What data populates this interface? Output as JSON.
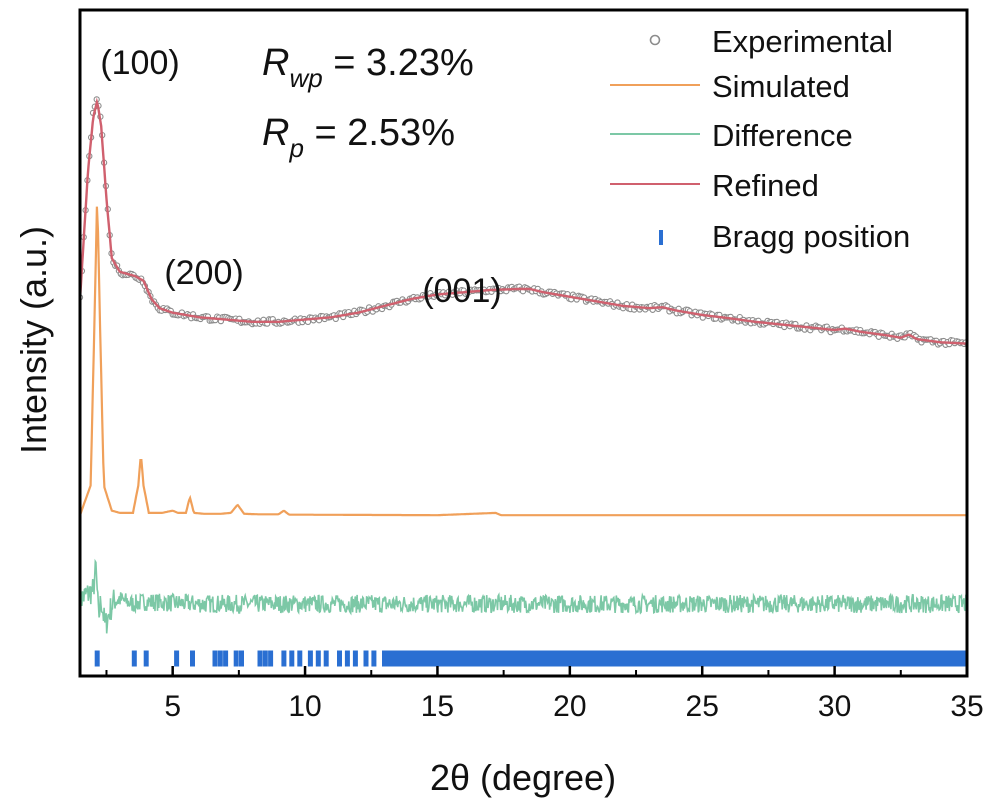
{
  "chart_data": {
    "type": "line",
    "title": "",
    "xlabel": "2θ (degree)",
    "ylabel": "Intensity (a.u.)",
    "xlim": [
      1.5,
      35
    ],
    "ylim": [
      0,
      1
    ],
    "y_ticks_shown": false,
    "grid": false,
    "legend_position": "top-right",
    "x_ticks": [
      5,
      10,
      15,
      20,
      25,
      30,
      35
    ],
    "x_tick_labels": [
      "5",
      "10",
      "15",
      "20",
      "25",
      "30",
      "35"
    ],
    "colors": {
      "experimental": "#8c8c8c",
      "simulated": "#f0a05a",
      "difference": "#7cc8a6",
      "refined": "#d0606e",
      "bragg": "#2a6fd2"
    },
    "series": [
      {
        "name": "Experimental",
        "style": "open-circle markers",
        "x": [
          1.5,
          1.8,
          2.0,
          2.15,
          2.3,
          2.5,
          2.7,
          3.0,
          3.3,
          3.6,
          3.9,
          4.2,
          4.5,
          5,
          6,
          7,
          8,
          9,
          10,
          11,
          12,
          13,
          14,
          15,
          16,
          17,
          18,
          18.5,
          19,
          20,
          21,
          22,
          23,
          23.5,
          24,
          25,
          26,
          27,
          28,
          29,
          30,
          30.4,
          31,
          32,
          32.5,
          32.8,
          33.1,
          34,
          35
        ],
        "y": [
          0.49,
          0.77,
          0.9,
          0.94,
          0.88,
          0.72,
          0.58,
          0.55,
          0.545,
          0.54,
          0.53,
          0.49,
          0.47,
          0.46,
          0.45,
          0.445,
          0.44,
          0.44,
          0.445,
          0.45,
          0.46,
          0.475,
          0.49,
          0.5,
          0.505,
          0.51,
          0.512,
          0.512,
          0.505,
          0.495,
          0.485,
          0.475,
          0.47,
          0.472,
          0.465,
          0.455,
          0.448,
          0.44,
          0.434,
          0.428,
          0.422,
          0.425,
          0.418,
          0.41,
          0.405,
          0.412,
          0.402,
          0.395,
          0.392
        ]
      },
      {
        "name": "Simulated",
        "x": [
          1.5,
          1.9,
          2.05,
          2.15,
          2.25,
          2.4,
          2.7,
          3.0,
          3.5,
          3.7,
          3.8,
          3.9,
          4.1,
          4.6,
          5.0,
          5.2,
          5.5,
          5.65,
          5.8,
          6.2,
          6.8,
          7.2,
          7.45,
          7.7,
          8.2,
          9.0,
          9.2,
          9.4,
          10,
          15,
          17.2,
          17.4,
          20,
          25,
          30,
          35
        ],
        "y": [
          0.015,
          0.08,
          0.45,
          0.72,
          0.45,
          0.08,
          0.025,
          0.02,
          0.02,
          0.08,
          0.15,
          0.08,
          0.02,
          0.02,
          0.025,
          0.02,
          0.02,
          0.055,
          0.02,
          0.018,
          0.018,
          0.02,
          0.038,
          0.018,
          0.017,
          0.017,
          0.025,
          0.016,
          0.016,
          0.015,
          0.02,
          0.015,
          0.015,
          0.015,
          0.015,
          0.015
        ]
      },
      {
        "name": "Difference",
        "noisy": true,
        "x": [
          1.5,
          2.0,
          2.1,
          2.2,
          2.3,
          2.45,
          2.6,
          2.8,
          3.0,
          3.5,
          4,
          5,
          6,
          7,
          8,
          10,
          15,
          20,
          25,
          30,
          35
        ],
        "y": [
          -0.17,
          -0.15,
          -0.1,
          -0.21,
          -0.17,
          -0.23,
          -0.2,
          -0.17,
          -0.17,
          -0.18,
          -0.175,
          -0.178,
          -0.18,
          -0.18,
          -0.18,
          -0.18,
          -0.18,
          -0.18,
          -0.18,
          -0.18,
          -0.18
        ]
      },
      {
        "name": "Refined",
        "x": [
          1.5,
          1.8,
          2.0,
          2.15,
          2.3,
          2.5,
          2.7,
          3.0,
          3.3,
          3.6,
          3.9,
          4.2,
          4.5,
          5,
          6,
          7,
          8,
          9,
          10,
          11,
          12,
          13,
          14,
          15,
          16,
          17,
          18,
          18.5,
          19,
          20,
          21,
          22,
          23,
          23.5,
          24,
          25,
          26,
          27,
          28,
          29,
          30,
          30.4,
          31,
          32,
          32.5,
          32.8,
          33.1,
          34,
          35
        ],
        "y": [
          0.49,
          0.77,
          0.89,
          0.925,
          0.87,
          0.71,
          0.58,
          0.55,
          0.545,
          0.54,
          0.53,
          0.49,
          0.47,
          0.46,
          0.45,
          0.445,
          0.44,
          0.44,
          0.445,
          0.45,
          0.46,
          0.475,
          0.49,
          0.5,
          0.505,
          0.51,
          0.512,
          0.512,
          0.505,
          0.495,
          0.485,
          0.475,
          0.47,
          0.472,
          0.465,
          0.455,
          0.448,
          0.44,
          0.434,
          0.428,
          0.422,
          0.425,
          0.418,
          0.41,
          0.405,
          0.412,
          0.402,
          0.395,
          0.392
        ]
      }
    ],
    "bragg_positions": {
      "name": "Bragg position",
      "y_level": -0.3,
      "x": [
        2.15,
        3.55,
        4.0,
        5.15,
        5.75,
        6.6,
        6.8,
        7.0,
        7.4,
        7.6,
        8.3,
        8.5,
        8.7,
        9.2,
        9.5,
        9.8,
        10.2,
        10.5,
        10.8,
        11.3,
        11.6,
        11.9,
        12.3,
        12.6,
        13.0
      ],
      "dense_range": [
        13.0,
        35.0
      ]
    },
    "annotations": [
      {
        "text": "(100)",
        "x": 2.15
      },
      {
        "text": "(200)",
        "x": 3.8
      },
      {
        "text": "(001)",
        "x": 18.0
      }
    ],
    "stats": {
      "rwp_symbol": "R",
      "rwp_sub": "wp",
      "rwp_value": " = 3.23%",
      "rp_symbol": "R",
      "rp_sub": "p",
      "rp_value": " = 2.53%"
    }
  }
}
